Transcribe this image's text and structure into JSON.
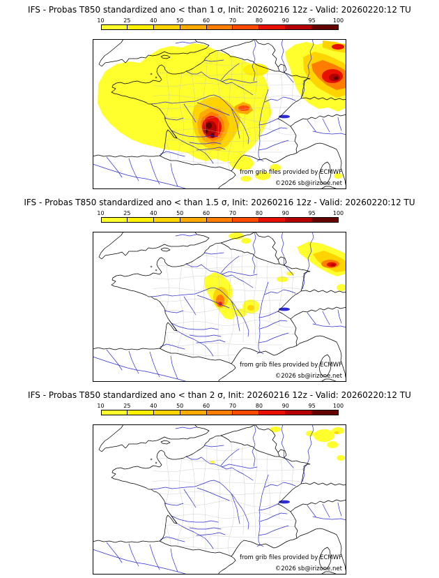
{
  "colorbar": {
    "ticks": [
      "10",
      "25",
      "40",
      "50",
      "60",
      "70",
      "80",
      "90",
      "95",
      "100"
    ],
    "segment_colors": [
      "#ffff2e",
      "#fff000",
      "#ffd400",
      "#ffaa00",
      "#ff7d00",
      "#ff4b00",
      "#e81000",
      "#b40000",
      "#640000"
    ]
  },
  "panels": [
    {
      "threshold_sigma": "1",
      "title": "IFS - Probas T850  standardized ano < than 1 σ, Init: 20260216 12z - Valid: 20260220:12 TU",
      "credit": "from grib files provided by ECMWF",
      "copyright": "©2026 sb@irizone.net"
    },
    {
      "threshold_sigma": "1.5",
      "title": "IFS - Probas T850  standardized ano < than 1.5 σ, Init: 20260216 12z - Valid: 20260220:12 TU",
      "credit": "from grib files provided by ECMWF",
      "copyright": "©2026 sb@irizone.net"
    },
    {
      "threshold_sigma": "2",
      "title": "IFS - Probas T850  standardized ano < than 2 σ, Init: 20260216 12z - Valid: 20260220:12 TU",
      "credit": "from grib files provided by ECMWF",
      "copyright": "©2026 sb@irizone.net"
    }
  ],
  "map": {
    "river_color": "#2d2dd2",
    "coast_color": "#000000",
    "department_color": "#bcbcbc",
    "sea_color": "#ffffff"
  }
}
